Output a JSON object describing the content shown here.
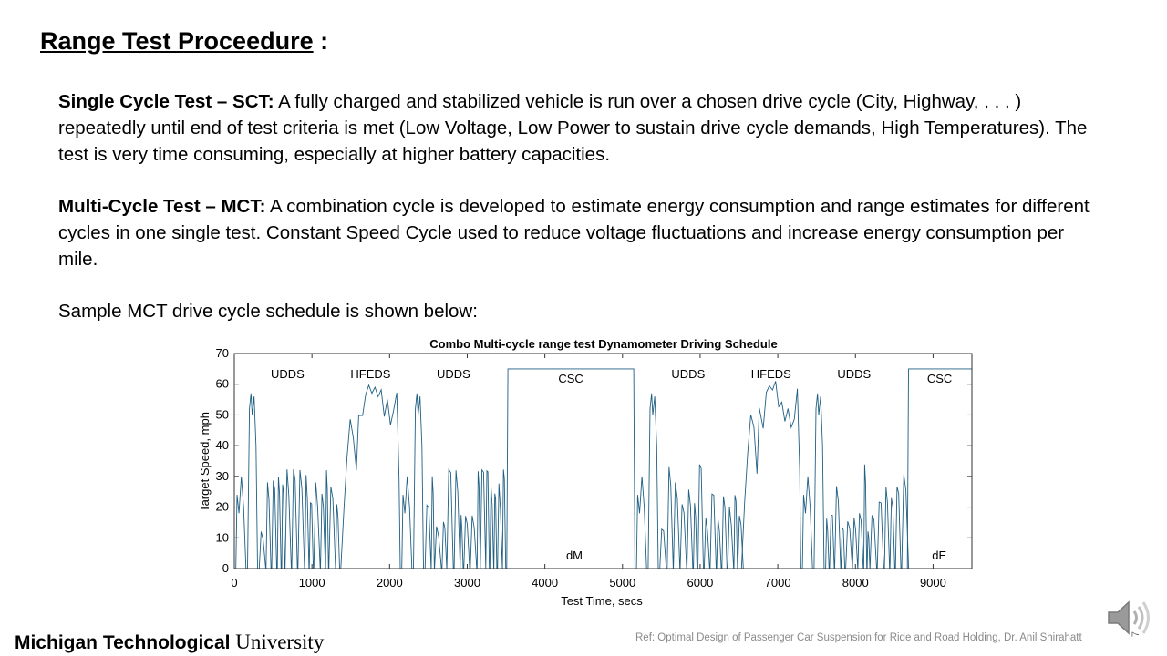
{
  "slide": {
    "title": "Range Test Proceedure",
    "title_suffix": " :",
    "para1_bold": "Single Cycle Test – SCT:",
    "para1_text": " A fully charged and stabilized vehicle is run over a chosen drive cycle (City, Highway, . . . ) repeatedly until end of test criteria is met (Low Voltage, Low Power to sustain drive cycle demands, High Temperatures).  The test is very time consuming, especially at higher battery capacities.",
    "para2_bold": "Multi-Cycle Test – MCT:",
    "para2_text": " A combination cycle is developed to estimate energy consumption and range estimates for different cycles in one single test. Constant Speed Cycle used to reduce voltage fluctuations and increase energy consumption per mile.",
    "para3": "Sample MCT drive cycle schedule is shown below:",
    "logo_bold": "Michigan Technological",
    "logo_regular": " University",
    "reference": "Ref: Optimal Design of Passenger Car Suspension  for Ride and Road Holding, Dr. Anil Shirahatt",
    "page_number": "7"
  },
  "chart_data": {
    "type": "line",
    "title": "Combo Multi-cycle range test Dynamometer Driving Schedule",
    "xlabel": "Test Time, secs",
    "ylabel": "Target Speed, mph",
    "xlim": [
      0,
      9500
    ],
    "ylim": [
      0,
      70
    ],
    "xticks": [
      0,
      1000,
      2000,
      3000,
      4000,
      5000,
      6000,
      7000,
      8000,
      9000
    ],
    "yticks": [
      0,
      10,
      20,
      30,
      40,
      50,
      60,
      70
    ],
    "line_color": "#1f5f82",
    "grid": false,
    "segments": [
      {
        "label": "UDDS",
        "kind": "udds",
        "start": 0,
        "end": 1372
      },
      {
        "label": "HFEDS",
        "kind": "hfeds",
        "start": 1372,
        "end": 2137
      },
      {
        "label": "UDDS",
        "kind": "udds",
        "start": 2137,
        "end": 3509
      },
      {
        "label": "CSC",
        "kind": "csc",
        "start": 3509,
        "end": 5160,
        "speed": 65
      },
      {
        "label": "UDDS",
        "kind": "udds",
        "start": 5160,
        "end": 6532
      },
      {
        "label": "HFEDS",
        "kind": "hfeds",
        "start": 6532,
        "end": 7297
      },
      {
        "label": "UDDS",
        "kind": "udds",
        "start": 7297,
        "end": 8669
      },
      {
        "label": "CSC",
        "kind": "csc",
        "start": 8669,
        "end": 9500,
        "speed": 65
      }
    ],
    "annotations": [
      {
        "text": "dM",
        "x": 4380,
        "y": 3
      },
      {
        "text": "dE",
        "x": 9080,
        "y": 3
      }
    ]
  }
}
